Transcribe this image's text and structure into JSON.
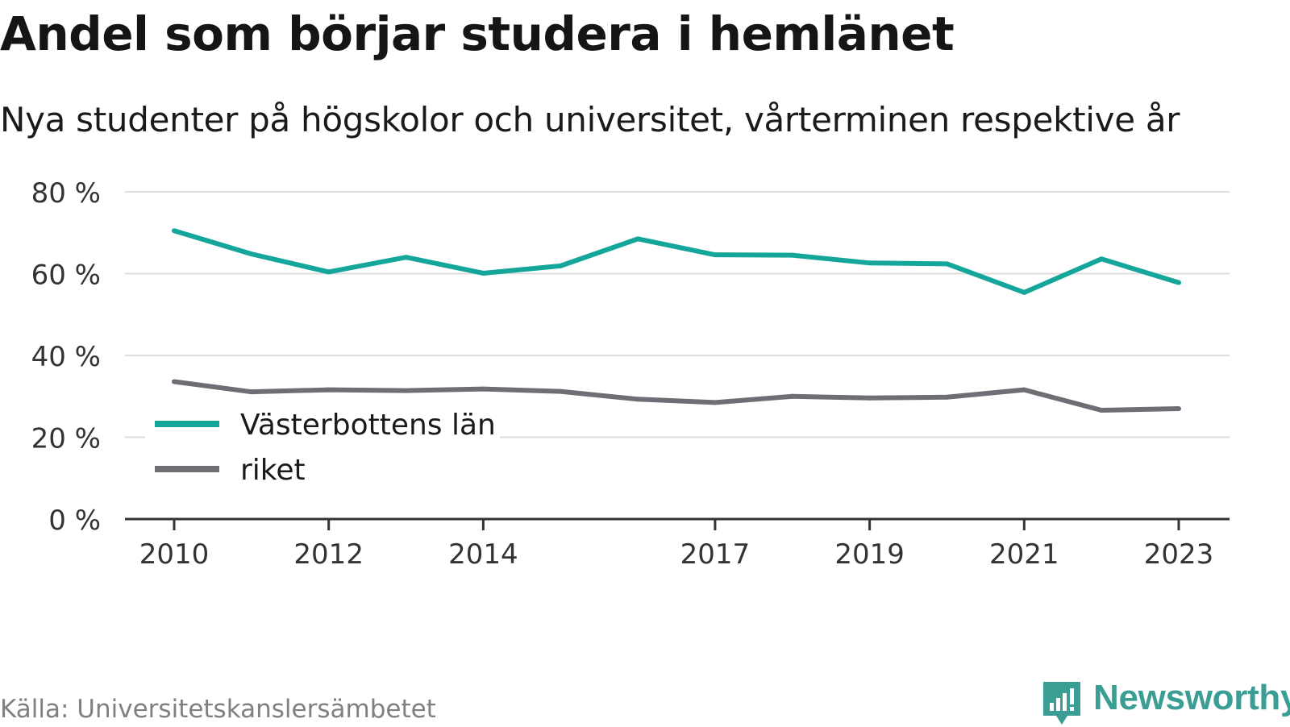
{
  "title": "Andel som börjar studera i hemlänet",
  "subtitle": "Nya studenter på högskolor och universitet, vårterminen respektive år",
  "source": "Källa: Universitetskanslersämbetet",
  "brand": {
    "name": "Newsworthy",
    "color": "#3a9e94",
    "icon": "newsworthy-logo-icon"
  },
  "colors": {
    "grid": "#dddddd",
    "axis": "#333333",
    "text": "#333333"
  },
  "chart_data": {
    "type": "line",
    "x": [
      2010,
      2011,
      2012,
      2013,
      2014,
      2015,
      2016,
      2017,
      2018,
      2019,
      2020,
      2021,
      2022,
      2023
    ],
    "xticks": [
      "2010",
      "2012",
      "2014",
      "2017",
      "2019",
      "2021",
      "2023"
    ],
    "yticks": [
      "0 %",
      "20 %",
      "40 %",
      "60 %",
      "80 %"
    ],
    "ylim": [
      0,
      80
    ],
    "grid": true,
    "legend_position": "bottom-left",
    "series": [
      {
        "name": "Västerbottens län",
        "color": "#14a69a",
        "values": [
          70.5,
          64.8,
          60.4,
          64.0,
          60.1,
          61.9,
          68.5,
          64.6,
          64.5,
          62.6,
          62.4,
          55.4,
          63.6,
          57.8
        ]
      },
      {
        "name": "riket",
        "color": "#6e6e75",
        "values": [
          33.6,
          31.1,
          31.6,
          31.4,
          31.8,
          31.2,
          29.3,
          28.5,
          30.0,
          29.6,
          29.8,
          31.6,
          26.6,
          27.0
        ]
      }
    ]
  }
}
